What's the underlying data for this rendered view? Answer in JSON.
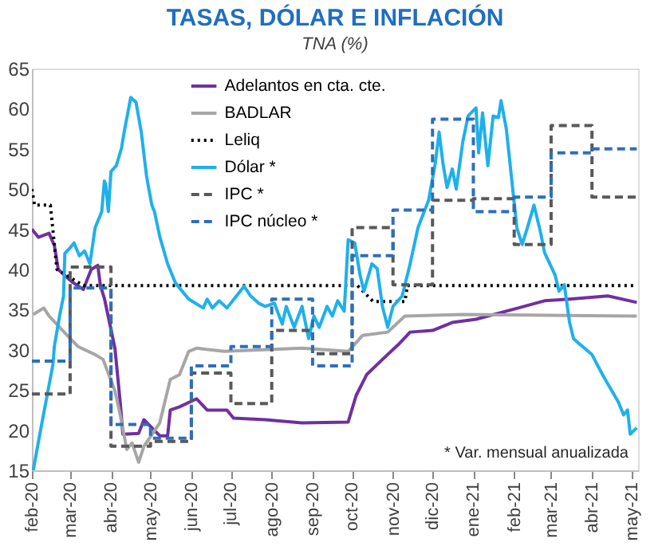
{
  "chart_data": {
    "type": "line",
    "title": "TASAS, DÓLAR E INFLACIÓN",
    "subtitle": "TNA (%)",
    "xlim": [
      "2020-02-01",
      "2021-05-06"
    ],
    "xticks": [
      {
        "value": "2020-02-01",
        "label": "feb-20"
      },
      {
        "value": "2020-03-01",
        "label": "mar-20"
      },
      {
        "value": "2020-04-01",
        "label": "abr-20"
      },
      {
        "value": "2020-05-01",
        "label": "may-20"
      },
      {
        "value": "2020-06-01",
        "label": "jun-20"
      },
      {
        "value": "2020-07-01",
        "label": "jul-20"
      },
      {
        "value": "2020-08-01",
        "label": "ago-20"
      },
      {
        "value": "2020-09-01",
        "label": "sep-20"
      },
      {
        "value": "2020-10-01",
        "label": "oct-20"
      },
      {
        "value": "2020-11-01",
        "label": "nov-20"
      },
      {
        "value": "2020-12-01",
        "label": "dic-20"
      },
      {
        "value": "2021-01-01",
        "label": "ene-21"
      },
      {
        "value": "2021-02-01",
        "label": "feb-21"
      },
      {
        "value": "2021-03-01",
        "label": "mar-21"
      },
      {
        "value": "2021-04-01",
        "label": "abr-21"
      },
      {
        "value": "2021-05-01",
        "label": "may-21"
      }
    ],
    "ylim": [
      15,
      65
    ],
    "yticks": [
      15,
      20,
      25,
      30,
      35,
      40,
      45,
      50,
      55,
      60,
      65
    ],
    "grid": false,
    "legend": "top",
    "annotations": [
      "* Var. mensual anualizada"
    ],
    "series": [
      {
        "name": "Adelantos en cta. cte.",
        "color": "#7030a0",
        "line_style": "solid",
        "x": [
          "2020-02-01",
          "2020-02-06",
          "2020-02-14",
          "2020-02-18",
          "2020-02-21",
          "2020-03-02",
          "2020-03-11",
          "2020-03-17",
          "2020-03-22",
          "2020-03-24",
          "2020-03-27",
          "2020-04-04",
          "2020-04-08",
          "2020-04-10",
          "2020-04-22",
          "2020-04-26",
          "2020-05-08",
          "2020-05-14",
          "2020-05-16",
          "2020-05-23",
          "2020-06-05",
          "2020-06-13",
          "2020-06-28",
          "2020-07-03",
          "2020-07-27",
          "2020-08-24",
          "2020-09-28",
          "2020-10-04",
          "2020-10-12",
          "2020-10-24",
          "2020-11-06",
          "2020-11-14",
          "2020-12-01",
          "2020-12-16",
          "2021-01-03",
          "2021-02-04",
          "2021-02-24",
          "2021-03-15",
          "2021-04-13",
          "2021-05-05"
        ],
        "values": [
          45,
          44,
          44.5,
          43,
          40,
          38.5,
          37.5,
          40,
          40.5,
          38,
          36.4,
          30.2,
          23.5,
          19.5,
          19.6,
          21.3,
          19.3,
          19.3,
          22.5,
          22.9,
          23.9,
          22.5,
          22.5,
          21.5,
          21.3,
          20.9,
          21,
          24.3,
          26.9,
          28.8,
          30.8,
          32.2,
          32.4,
          33.4,
          33.8,
          35.2,
          36.1,
          36.3,
          36.7,
          35.9
        ]
      },
      {
        "name": "BADLAR",
        "color": "#a6a6a6",
        "line_style": "solid",
        "x": [
          "2020-02-02",
          "2020-02-10",
          "2020-02-14",
          "2020-03-01",
          "2020-03-07",
          "2020-03-20",
          "2020-03-26",
          "2020-04-04",
          "2020-04-08",
          "2020-04-13",
          "2020-04-17",
          "2020-04-22",
          "2020-04-26",
          "2020-05-08",
          "2020-05-16",
          "2020-05-23",
          "2020-05-30",
          "2020-06-05",
          "2020-06-26",
          "2020-08-24",
          "2020-09-28",
          "2020-10-09",
          "2020-10-28",
          "2020-11-10",
          "2020-12-24",
          "2021-05-05"
        ],
        "values": [
          34.4,
          35.2,
          34.2,
          31.4,
          30.4,
          29.4,
          28.8,
          24.9,
          21.9,
          17.6,
          18.4,
          16,
          18,
          20.9,
          26.3,
          26.9,
          29.8,
          30.2,
          29.8,
          30.2,
          29.8,
          31.8,
          32.2,
          34.2,
          34.4,
          34.2
        ]
      },
      {
        "name": "Leliq",
        "color": "#000000",
        "line_style": "dotted",
        "x": [
          "2020-02-01",
          "2020-02-03",
          "2020-02-15",
          "2020-02-20",
          "2020-03-11",
          "2020-10-05",
          "2020-10-17",
          "2020-11-10",
          "2020-11-12",
          "2021-05-05"
        ],
        "values": [
          50,
          48,
          48,
          40,
          38,
          38,
          36,
          36,
          38,
          38
        ]
      },
      {
        "name": "Dólar *",
        "color": "#1fb0ec",
        "line_style": "solid",
        "x": [
          "2020-02-02",
          "2020-02-07",
          "2020-02-17",
          "2020-02-18",
          "2020-02-22",
          "2020-02-25",
          "2020-02-26",
          "2020-03-01",
          "2020-03-04",
          "2020-03-08",
          "2020-03-12",
          "2020-03-16",
          "2020-03-20",
          "2020-03-25",
          "2020-03-27",
          "2020-03-28",
          "2020-03-30",
          "2020-04-01",
          "2020-04-05",
          "2020-04-09",
          "2020-04-11",
          "2020-04-16",
          "2020-04-20",
          "2020-04-24",
          "2020-04-28",
          "2020-05-02",
          "2020-05-04",
          "2020-05-08",
          "2020-05-14",
          "2020-05-20",
          "2020-05-30",
          "2020-06-10",
          "2020-06-13",
          "2020-06-17",
          "2020-06-22",
          "2020-06-28",
          "2020-07-11",
          "2020-07-16",
          "2020-07-22",
          "2020-07-27",
          "2020-08-03",
          "2020-08-09",
          "2020-08-12",
          "2020-08-18",
          "2020-08-24",
          "2020-08-29",
          "2020-09-02",
          "2020-09-06",
          "2020-09-12",
          "2020-09-16",
          "2020-09-20",
          "2020-09-25",
          "2020-09-28",
          "2020-10-03",
          "2020-10-07",
          "2020-10-10",
          "2020-10-16",
          "2020-10-20",
          "2020-10-24",
          "2020-10-28",
          "2020-11-01",
          "2020-11-08",
          "2020-11-14",
          "2020-11-20",
          "2020-11-28",
          "2020-12-03",
          "2020-12-06",
          "2020-12-09",
          "2020-12-12",
          "2020-12-16",
          "2020-12-19",
          "2020-12-24",
          "2020-12-28",
          "2021-01-03",
          "2021-01-05",
          "2021-01-08",
          "2021-01-12",
          "2021-01-16",
          "2021-01-20",
          "2021-01-22",
          "2021-01-26",
          "2021-01-29",
          "2021-02-03",
          "2021-02-07",
          "2021-02-11",
          "2021-02-16",
          "2021-02-21",
          "2021-02-24",
          "2021-02-28",
          "2021-03-04",
          "2021-03-07",
          "2021-03-11",
          "2021-03-15",
          "2021-03-18",
          "2021-03-22",
          "2021-04-01",
          "2021-04-09",
          "2021-04-21",
          "2021-04-25",
          "2021-04-28",
          "2021-04-30",
          "2021-05-05"
        ],
        "values": [
          15,
          19.5,
          28.2,
          30.4,
          34.2,
          36.7,
          42,
          42.7,
          43.3,
          41.7,
          42.3,
          40.7,
          45.2,
          47.2,
          51,
          50.6,
          47.2,
          52.2,
          52.9,
          55.1,
          57.1,
          61.4,
          60.8,
          57.1,
          51.6,
          48,
          47.2,
          44.1,
          40.7,
          38.3,
          36.3,
          35.2,
          36.3,
          35.2,
          36.1,
          35.2,
          37.9,
          36.7,
          35.8,
          35.4,
          35.8,
          33.2,
          35.4,
          32.8,
          35.4,
          31.4,
          34.2,
          32.8,
          35.4,
          34.2,
          36.1,
          34.8,
          43.7,
          43.3,
          39.3,
          37.3,
          40.7,
          40.1,
          35.4,
          32.8,
          35.4,
          36.7,
          40.7,
          45.2,
          48.6,
          53.1,
          57.1,
          53.1,
          50.2,
          52.5,
          50,
          55.9,
          59.1,
          60.1,
          54.5,
          59.5,
          52.9,
          59.1,
          58.9,
          61,
          57.5,
          52.9,
          45.2,
          43.1,
          45.2,
          48,
          44.6,
          42.1,
          40.7,
          39.3,
          37.3,
          38.1,
          33.4,
          31.4,
          30.8,
          29.4,
          26.9,
          23.5,
          21.9,
          22.5,
          19.5,
          20.3
        ]
      },
      {
        "name": "IPC *",
        "color": "#595959",
        "line_style": "dashed",
        "type": "step",
        "x": [
          "2020-02-01",
          "2020-03-01",
          "2020-04-01",
          "2020-05-01",
          "2020-06-01",
          "2020-07-01",
          "2020-08-01",
          "2020-09-01",
          "2020-10-01",
          "2020-11-01",
          "2020-12-01",
          "2021-01-01",
          "2021-02-01",
          "2021-03-01",
          "2021-04-01",
          "2021-05-05"
        ],
        "values": [
          24.5,
          40.3,
          18,
          18.6,
          27.1,
          23.3,
          32.4,
          29.5,
          45.2,
          38.1,
          48.6,
          48.8,
          43.1,
          57.9,
          49,
          49
        ]
      },
      {
        "name": "IPC núcleo *",
        "color": "#2e6fba",
        "line_style": "dashed",
        "type": "step",
        "x": [
          "2020-02-01",
          "2020-03-01",
          "2020-04-01",
          "2020-05-01",
          "2020-06-01",
          "2020-07-01",
          "2020-08-01",
          "2020-09-01",
          "2020-10-01",
          "2020-11-01",
          "2020-12-01",
          "2021-01-01",
          "2021-02-01",
          "2021-03-01",
          "2021-04-01",
          "2021-05-05"
        ],
        "values": [
          28.6,
          37.7,
          20.7,
          19,
          28,
          30.4,
          36.3,
          28,
          41.7,
          47.4,
          58.7,
          47.2,
          49,
          54.5,
          55,
          55
        ]
      }
    ]
  }
}
